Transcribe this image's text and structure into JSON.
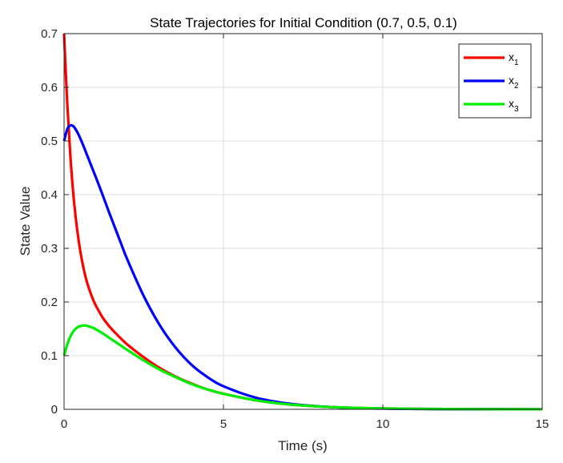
{
  "chart_data": {
    "type": "line",
    "title": "State Trajectories for Initial Condition (0.7, 0.5, 0.1)",
    "xlabel": "Time (s)",
    "ylabel": "State Value",
    "xlim": [
      0,
      15
    ],
    "ylim": [
      0,
      0.7
    ],
    "xticks": [
      0,
      5,
      10,
      15
    ],
    "yticks": [
      0,
      0.1,
      0.2,
      0.3,
      0.4,
      0.5,
      0.6,
      0.7
    ],
    "grid": true,
    "legend_position": "top-right",
    "x": [
      0,
      0.1,
      0.2,
      0.3,
      0.4,
      0.5,
      0.6,
      0.7,
      0.8,
      0.9,
      1.0,
      1.2,
      1.4,
      1.6,
      1.8,
      2.0,
      2.5,
      3.0,
      3.5,
      4.0,
      4.5,
      5.0,
      6.0,
      7.0,
      8.0,
      9.0,
      10.0,
      11.0,
      12.0,
      13.0,
      14.0,
      15.0
    ],
    "series": [
      {
        "name": "x1",
        "base": "x",
        "sub": "1",
        "color": "#ff0000",
        "values": [
          0.7,
          0.57,
          0.47,
          0.395,
          0.34,
          0.298,
          0.266,
          0.241,
          0.222,
          0.206,
          0.193,
          0.172,
          0.156,
          0.143,
          0.131,
          0.12,
          0.097,
          0.077,
          0.061,
          0.048,
          0.037,
          0.029,
          0.017,
          0.0095,
          0.0053,
          0.003,
          0.0017,
          0.001,
          0.0006,
          0.0003,
          0.0002,
          0.0001
        ]
      },
      {
        "name": "x2",
        "base": "x",
        "sub": "2",
        "color": "#0000ff",
        "values": [
          0.5,
          0.522,
          0.529,
          0.527,
          0.518,
          0.506,
          0.492,
          0.477,
          0.462,
          0.447,
          0.432,
          0.401,
          0.369,
          0.338,
          0.307,
          0.277,
          0.211,
          0.157,
          0.115,
          0.083,
          0.06,
          0.043,
          0.022,
          0.011,
          0.0055,
          0.0028,
          0.0014,
          0.0007,
          0.0004,
          0.0002,
          0.0001,
          0.0001
        ]
      },
      {
        "name": "x3",
        "base": "x",
        "sub": "3",
        "color": "#00ee00",
        "values": [
          0.1,
          0.121,
          0.136,
          0.146,
          0.152,
          0.155,
          0.156,
          0.156,
          0.154,
          0.152,
          0.149,
          0.142,
          0.134,
          0.126,
          0.118,
          0.11,
          0.091,
          0.074,
          0.06,
          0.047,
          0.037,
          0.029,
          0.017,
          0.0095,
          0.0053,
          0.003,
          0.0017,
          0.001,
          0.0006,
          0.0003,
          0.0002,
          0.0001
        ]
      }
    ]
  }
}
